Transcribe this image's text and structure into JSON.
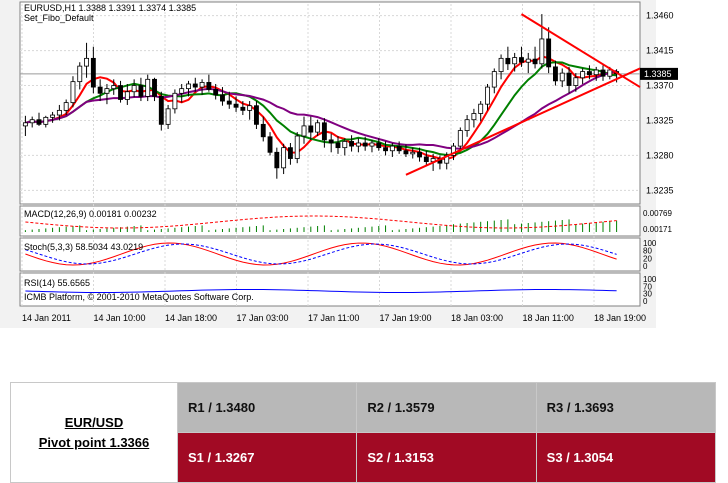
{
  "chart": {
    "title_line1": "EURUSD,H1  1.3388 1.3391 1.3374 1.3385",
    "title_line2": "Set_Fibo_Default",
    "price_ticks": [
      "1.3460",
      "1.3415",
      "1.3370",
      "1.3325",
      "1.3280",
      "1.3235"
    ],
    "current_price": "1.3385",
    "macd": {
      "label": "MACD(12,26,9) 0.00181 0.00232",
      "ticks": [
        "0.00769",
        "0.00171"
      ]
    },
    "stoch": {
      "label": "Stoch(5,3,3) 58.5034 43.0219",
      "ticks": [
        "100",
        "80",
        "20",
        "0"
      ]
    },
    "rsi": {
      "label": "RSI(14) 55.6565",
      "ticks": [
        "100",
        "70",
        "30",
        "0"
      ]
    },
    "watermark": "ICMB Platform, © 2001-2010 MetaQuotes Software Corp.",
    "time_labels": [
      "14 Jan 2011",
      "14 Jan 10:00",
      "14 Jan 18:00",
      "17 Jan 03:00",
      "17 Jan 11:00",
      "17 Jan 19:00",
      "18 Jan 03:00",
      "18 Jan 11:00",
      "18 Jan 19:00"
    ],
    "colors": {
      "bull": "#ffffff",
      "bear": "#000000",
      "ma_fast": "#ff0000",
      "ma_mid": "#008000",
      "ma_slow": "#800080",
      "trendline": "#ff0000",
      "stoch_main": "#ff0000",
      "stoch_signal": "#0000ff",
      "rsi_line": "#0000ff"
    }
  },
  "chart_data": {
    "type": "candlestick",
    "symbol": "EURUSD",
    "timeframe": "H1",
    "ylim": [
      1.322,
      1.3475
    ],
    "candles": [
      [
        1.3318,
        1.3331,
        1.3305,
        1.3322
      ],
      [
        1.3322,
        1.333,
        1.3316,
        1.3326
      ],
      [
        1.3326,
        1.3335,
        1.3318,
        1.332
      ],
      [
        1.332,
        1.3331,
        1.3316,
        1.3329
      ],
      [
        1.3329,
        1.3336,
        1.3322,
        1.3332
      ],
      [
        1.3332,
        1.3345,
        1.3325,
        1.3338
      ],
      [
        1.3338,
        1.3352,
        1.3332,
        1.3348
      ],
      [
        1.3348,
        1.3382,
        1.3342,
        1.3375
      ],
      [
        1.3375,
        1.34,
        1.3365,
        1.3395
      ],
      [
        1.3395,
        1.3425,
        1.338,
        1.3405
      ],
      [
        1.3405,
        1.342,
        1.336,
        1.3368
      ],
      [
        1.3368,
        1.3378,
        1.335,
        1.336
      ],
      [
        1.336,
        1.3372,
        1.3346,
        1.3366
      ],
      [
        1.3366,
        1.3378,
        1.3358,
        1.337
      ],
      [
        1.337,
        1.3376,
        1.3348,
        1.3352
      ],
      [
        1.3352,
        1.3372,
        1.3345,
        1.3362
      ],
      [
        1.3362,
        1.3378,
        1.3355,
        1.337
      ],
      [
        1.337,
        1.338,
        1.335,
        1.3356
      ],
      [
        1.3356,
        1.3384,
        1.335,
        1.3378
      ],
      [
        1.3378,
        1.338,
        1.335,
        1.3356
      ],
      [
        1.3356,
        1.3362,
        1.3312,
        1.332
      ],
      [
        1.332,
        1.3345,
        1.3314,
        1.334
      ],
      [
        1.334,
        1.3365,
        1.3334,
        1.336
      ],
      [
        1.336,
        1.3372,
        1.3348,
        1.3366
      ],
      [
        1.3366,
        1.3376,
        1.3356,
        1.3372
      ],
      [
        1.3372,
        1.338,
        1.3362,
        1.3368
      ],
      [
        1.3368,
        1.3378,
        1.3358,
        1.3374
      ],
      [
        1.3374,
        1.3384,
        1.3362,
        1.3365
      ],
      [
        1.3365,
        1.3372,
        1.3352,
        1.3358
      ],
      [
        1.3358,
        1.3368,
        1.3344,
        1.335
      ],
      [
        1.335,
        1.3362,
        1.334,
        1.3346
      ],
      [
        1.3346,
        1.3356,
        1.3336,
        1.3342
      ],
      [
        1.3342,
        1.335,
        1.3332,
        1.3338
      ],
      [
        1.3338,
        1.335,
        1.3326,
        1.3344
      ],
      [
        1.3344,
        1.335,
        1.3314,
        1.332
      ],
      [
        1.332,
        1.333,
        1.3298,
        1.3304
      ],
      [
        1.3304,
        1.331,
        1.328,
        1.3284
      ],
      [
        1.3284,
        1.329,
        1.325,
        1.3264
      ],
      [
        1.3264,
        1.3295,
        1.3256,
        1.329
      ],
      [
        1.329,
        1.3296,
        1.3268,
        1.3276
      ],
      [
        1.3276,
        1.331,
        1.327,
        1.3305
      ],
      [
        1.3305,
        1.333,
        1.3295,
        1.3318
      ],
      [
        1.3318,
        1.333,
        1.33,
        1.331
      ],
      [
        1.331,
        1.3326,
        1.3305,
        1.3322
      ],
      [
        1.3322,
        1.3328,
        1.329,
        1.33
      ],
      [
        1.33,
        1.3308,
        1.3284,
        1.3296
      ],
      [
        1.3296,
        1.3305,
        1.3282,
        1.329
      ],
      [
        1.329,
        1.3302,
        1.328,
        1.3298
      ],
      [
        1.3298,
        1.3306,
        1.3285,
        1.3292
      ],
      [
        1.3292,
        1.3302,
        1.3284,
        1.3296
      ],
      [
        1.3296,
        1.3304,
        1.3286,
        1.3292
      ],
      [
        1.3292,
        1.33,
        1.3284,
        1.3296
      ],
      [
        1.3296,
        1.3302,
        1.3286,
        1.329
      ],
      [
        1.329,
        1.3298,
        1.328,
        1.3286
      ],
      [
        1.3286,
        1.3296,
        1.3278,
        1.3292
      ],
      [
        1.3292,
        1.3298,
        1.3282,
        1.3286
      ],
      [
        1.3286,
        1.3294,
        1.3278,
        1.3282
      ],
      [
        1.3282,
        1.329,
        1.3276,
        1.3284
      ],
      [
        1.3284,
        1.329,
        1.3272,
        1.3278
      ],
      [
        1.3278,
        1.3286,
        1.3266,
        1.3272
      ],
      [
        1.3272,
        1.3282,
        1.326,
        1.3276
      ],
      [
        1.3276,
        1.328,
        1.3262,
        1.327
      ],
      [
        1.327,
        1.3284,
        1.3262,
        1.328
      ],
      [
        1.328,
        1.3296,
        1.3274,
        1.3292
      ],
      [
        1.3292,
        1.3316,
        1.3286,
        1.3312
      ],
      [
        1.3312,
        1.3332,
        1.3304,
        1.3326
      ],
      [
        1.3326,
        1.334,
        1.3316,
        1.3334
      ],
      [
        1.3334,
        1.335,
        1.3324,
        1.3346
      ],
      [
        1.3346,
        1.3372,
        1.3338,
        1.3368
      ],
      [
        1.3368,
        1.3392,
        1.336,
        1.3388
      ],
      [
        1.3388,
        1.341,
        1.3378,
        1.3405
      ],
      [
        1.3405,
        1.342,
        1.339,
        1.3398
      ],
      [
        1.3398,
        1.3412,
        1.3388,
        1.3406
      ],
      [
        1.3406,
        1.342,
        1.3394,
        1.34
      ],
      [
        1.34,
        1.3412,
        1.3386,
        1.3404
      ],
      [
        1.3404,
        1.342,
        1.3392,
        1.3398
      ],
      [
        1.3398,
        1.3462,
        1.3392,
        1.343
      ],
      [
        1.343,
        1.3445,
        1.3386,
        1.3394
      ],
      [
        1.3394,
        1.3402,
        1.337,
        1.3376
      ],
      [
        1.3376,
        1.3392,
        1.3368,
        1.3386
      ],
      [
        1.3386,
        1.3394,
        1.336,
        1.337
      ],
      [
        1.337,
        1.3386,
        1.3362,
        1.338
      ],
      [
        1.338,
        1.3392,
        1.3372,
        1.3388
      ],
      [
        1.3388,
        1.3396,
        1.3378,
        1.3384
      ],
      [
        1.3384,
        1.3394,
        1.3376,
        1.339
      ],
      [
        1.339,
        1.3396,
        1.3376,
        1.3382
      ],
      [
        1.3382,
        1.3394,
        1.3378,
        1.339
      ],
      [
        1.3388,
        1.3391,
        1.3374,
        1.3385
      ]
    ]
  },
  "pivot": {
    "pair": "EUR/USD",
    "pivot_point": "Pivot point 1.3366",
    "r1": "R1 / 1.3480",
    "r2": "R2 / 1.3579",
    "r3": "R3 / 1.3693",
    "s1": "S1 / 1.3267",
    "s2": "S2 / 1.3153",
    "s3": "S3 / 1.3054"
  }
}
